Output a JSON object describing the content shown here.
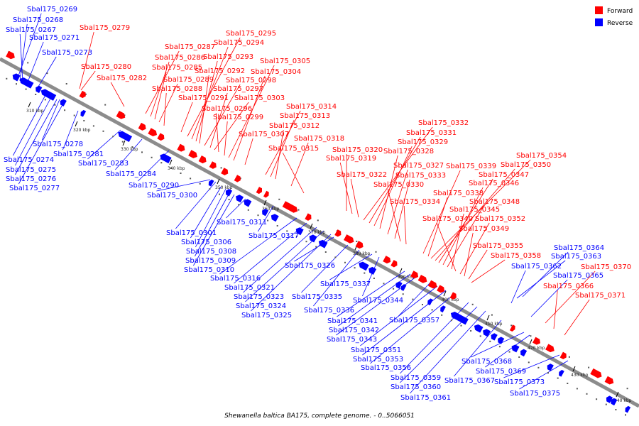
{
  "caption": "Shewanella baltica BA175, complete genome. - 0..5066051",
  "legend": {
    "forward_label": "Forward",
    "reverse_label": "Reverse"
  },
  "colors": {
    "forward": "#ff0000",
    "reverse": "#0000ff",
    "axis": "#8c8c8c",
    "tick": "#000000",
    "background": "#ffffff"
  },
  "axis_ticks": [
    "310 kbp",
    "320 kbp",
    "330 kbp",
    "340 kbp",
    "350 kbp",
    "360 kbp",
    "370 kbp",
    "380 kbp",
    "390 kbp",
    "400 kbp",
    "410 kbp",
    "420 kbp",
    "430 kbp",
    "440 kbp"
  ],
  "forward_labels": [
    "Sbal175_0279",
    "Sbal175_0280",
    "Sbal175_0282",
    "Sbal175_0287",
    "Sbal175_0286",
    "Sbal175_0285",
    "Sbal175_0289",
    "Sbal175_0288",
    "Sbal175_0291",
    "Sbal175_0295",
    "Sbal175_0294",
    "Sbal175_0293",
    "Sbal175_0292",
    "Sbal175_0298",
    "Sbal175_0297",
    "Sbal175_0303",
    "Sbal175_0296",
    "Sbal175_0299",
    "Sbal175_0305",
    "Sbal175_0304",
    "Sbal175_0307",
    "Sbal175_0314",
    "Sbal175_0313",
    "Sbal175_0312",
    "Sbal175_0318",
    "Sbal175_0315",
    "Sbal175_0320",
    "Sbal175_0319",
    "Sbal175_0322",
    "Sbal175_0332",
    "Sbal175_0331",
    "Sbal175_0329",
    "Sbal175_0328",
    "Sbal175_0327",
    "Sbal175_0333",
    "Sbal175_0330",
    "Sbal175_0334",
    "Sbal175_0339",
    "Sbal175_0338",
    "Sbal175_0354",
    "Sbal175_0350",
    "Sbal175_0347",
    "Sbal175_0346",
    "Sbal175_0348",
    "Sbal175_0345",
    "Sbal175_0340",
    "Sbal175_0352",
    "Sbal175_0349",
    "Sbal175_0355",
    "Sbal175_0358",
    "Sbal175_0370",
    "Sbal175_0366",
    "Sbal175_0371"
  ],
  "reverse_labels": [
    "Sbal175_0269",
    "Sbal175_0268",
    "Sbal175_0267",
    "Sbal175_0271",
    "Sbal175_0273",
    "Sbal175_0278",
    "Sbal175_0281",
    "Sbal175_0274",
    "Sbal175_0275",
    "Sbal175_0276",
    "Sbal175_0277",
    "Sbal175_0283",
    "Sbal175_0284",
    "Sbal175_0290",
    "Sbal175_0300",
    "Sbal175_0301",
    "Sbal175_0306",
    "Sbal175_0308",
    "Sbal175_0309",
    "Sbal175_0310",
    "Sbal175_0311",
    "Sbal175_0317",
    "Sbal175_0316",
    "Sbal175_0321",
    "Sbal175_0323",
    "Sbal175_0324",
    "Sbal175_0325",
    "Sbal175_0326",
    "Sbal175_0337",
    "Sbal175_0335",
    "Sbal175_0344",
    "Sbal175_0336",
    "Sbal175_0341",
    "Sbal175_0342",
    "Sbal175_0343",
    "Sbal175_0357",
    "Sbal175_0351",
    "Sbal175_0353",
    "Sbal175_0356",
    "Sbal175_0359",
    "Sbal175_0360",
    "Sbal175_0361",
    "Sbal175_0364",
    "Sbal175_0363",
    "Sbal175_0362",
    "Sbal175_0365",
    "Sbal175_0368",
    "Sbal175_0369",
    "Sbal175_0367",
    "Sbal175_0373",
    "Sbal175_0375"
  ]
}
